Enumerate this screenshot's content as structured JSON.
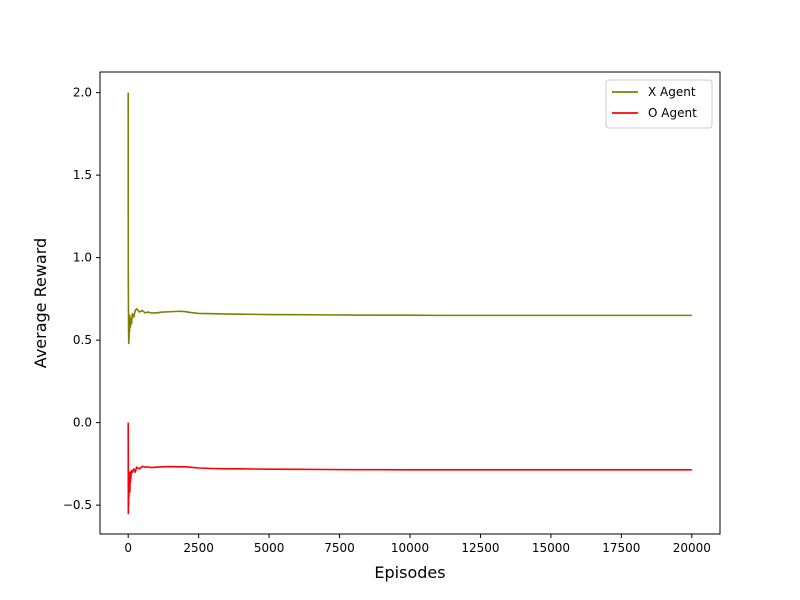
{
  "chart_data": {
    "type": "line",
    "title": "",
    "xlabel": "Episodes",
    "ylabel": "Average Reward",
    "xlim": [
      -1000,
      21000
    ],
    "ylim": [
      -0.6749,
      2.1249
    ],
    "x_ticks": [
      0,
      2500,
      5000,
      7500,
      10000,
      12500,
      15000,
      17500,
      20000
    ],
    "x_tick_labels": [
      "0",
      "2500",
      "5000",
      "7500",
      "10000",
      "12500",
      "15000",
      "17500",
      "20000"
    ],
    "y_ticks": [
      -0.5,
      0.0,
      0.5,
      1.0,
      1.5,
      2.0
    ],
    "y_tick_labels": [
      "−0.5",
      "0.0",
      "0.5",
      "1.0",
      "1.5",
      "2.0"
    ],
    "grid": false,
    "legend_position": "top-right",
    "series": [
      {
        "name": "X Agent",
        "color": "#808000",
        "x": [
          1,
          5,
          10,
          15,
          20,
          25,
          30,
          40,
          50,
          60,
          70,
          80,
          100,
          120,
          150,
          200,
          250,
          300,
          400,
          500,
          600,
          700,
          800,
          1000,
          1200,
          1500,
          1800,
          2000,
          2200,
          2500,
          3000,
          3500,
          4000,
          5000,
          6000,
          7000,
          8000,
          9000,
          10000,
          11000,
          12000,
          13000,
          14000,
          15000,
          16000,
          17000,
          18000,
          19000,
          20000
        ],
        "values": [
          2.0,
          0.85,
          0.7,
          0.55,
          0.48,
          0.62,
          0.5,
          0.6,
          0.55,
          0.65,
          0.6,
          0.58,
          0.63,
          0.6,
          0.66,
          0.64,
          0.68,
          0.69,
          0.67,
          0.68,
          0.665,
          0.67,
          0.665,
          0.665,
          0.67,
          0.672,
          0.675,
          0.673,
          0.668,
          0.662,
          0.66,
          0.658,
          0.657,
          0.655,
          0.654,
          0.653,
          0.652,
          0.651,
          0.651,
          0.65,
          0.65,
          0.65,
          0.65,
          0.65,
          0.65,
          0.65,
          0.65,
          0.65,
          0.65
        ]
      },
      {
        "name": "O Agent",
        "color": "#ff0000",
        "x": [
          1,
          5,
          10,
          15,
          20,
          25,
          30,
          40,
          50,
          60,
          70,
          80,
          100,
          120,
          150,
          200,
          250,
          300,
          400,
          500,
          600,
          700,
          800,
          1000,
          1200,
          1500,
          1800,
          2000,
          2200,
          2500,
          3000,
          3500,
          4000,
          5000,
          6000,
          7000,
          8000,
          9000,
          10000,
          11000,
          12000,
          13000,
          14000,
          15000,
          16000,
          17000,
          18000,
          19000,
          20000
        ],
        "values": [
          0.0,
          -0.55,
          -0.4,
          -0.5,
          -0.35,
          -0.45,
          -0.3,
          -0.4,
          -0.33,
          -0.42,
          -0.3,
          -0.36,
          -0.32,
          -0.29,
          -0.3,
          -0.28,
          -0.3,
          -0.27,
          -0.28,
          -0.265,
          -0.27,
          -0.268,
          -0.272,
          -0.27,
          -0.268,
          -0.266,
          -0.268,
          -0.268,
          -0.27,
          -0.275,
          -0.278,
          -0.28,
          -0.28,
          -0.282,
          -0.283,
          -0.284,
          -0.285,
          -0.285,
          -0.286,
          -0.286,
          -0.286,
          -0.286,
          -0.286,
          -0.286,
          -0.286,
          -0.286,
          -0.286,
          -0.286,
          -0.286
        ]
      }
    ]
  }
}
